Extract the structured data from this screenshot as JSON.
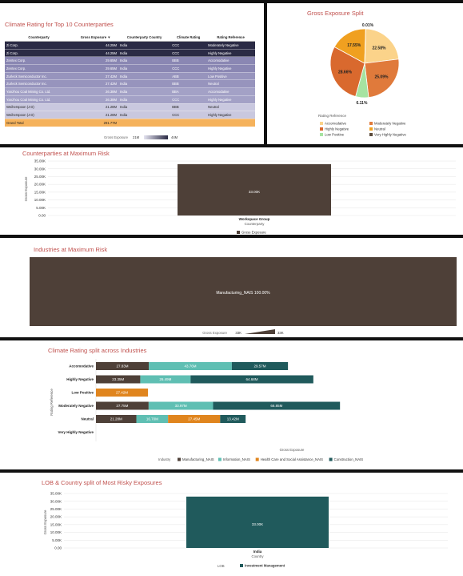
{
  "table_panel": {
    "title": "Climate Rating for Top 10 Counterparties",
    "columns": [
      "Counterparty",
      "Gross Exposure ▼",
      "Counterparty Country",
      "Climate Rating",
      "Rating Reference"
    ],
    "rows": [
      {
        "name": "Zi Corp.",
        "value": "44.25M",
        "country": "India",
        "rating": "CCC",
        "ref": "Moderately Negative",
        "color": "#2b2b45"
      },
      {
        "name": "Zi Corp.",
        "value": "44.25M",
        "country": "India",
        "rating": "CCC",
        "ref": "Highly Negative",
        "color": "#2b2b45"
      },
      {
        "name": "Zentex Corp.",
        "value": "29.65M",
        "country": "India",
        "rating": "BBB",
        "ref": "Accomodative",
        "color": "#8a87b3"
      },
      {
        "name": "Zentex Corp.",
        "value": "29.65M",
        "country": "India",
        "rating": "CCC",
        "ref": "Highly Negative",
        "color": "#8a87b3"
      },
      {
        "name": "Zurleck Semiconductor Inc.",
        "value": "27.42M",
        "country": "India",
        "rating": "ABB",
        "ref": "Low Positive",
        "color": "#9794bd"
      },
      {
        "name": "Zurleck Semiconductor Inc.",
        "value": "27.42M",
        "country": "India",
        "rating": "BBB",
        "ref": "Neutral",
        "color": "#9794bd"
      },
      {
        "name": "Yanzhou Coal Mining Co. Ltd.",
        "value": "26.38M",
        "country": "India",
        "rating": "BBA",
        "ref": "Accomodative",
        "color": "#a3a1c6"
      },
      {
        "name": "Yanzhou Coal Mining Co. Ltd.",
        "value": "26.38M",
        "country": "India",
        "rating": "CCC",
        "ref": "Highly Negative",
        "color": "#a3a1c6"
      },
      {
        "name": "Weiherspoon (J D)",
        "value": "21.28M",
        "country": "India",
        "rating": "BBB",
        "ref": "Neutral",
        "color": "#c9c8df"
      },
      {
        "name": "Weiherspoon (J D)",
        "value": "21.28M",
        "country": "India",
        "rating": "CCC",
        "ref": "Highly Negative",
        "color": "#c9c8df"
      }
    ],
    "total": {
      "name": "Grand Total",
      "value": "291.77M",
      "color": "#f5b25c"
    },
    "legend_label": "Gross Exposure",
    "legend_min": "21M",
    "legend_max": "44M"
  },
  "pie_panel": {
    "title": "Gross Exposure Split",
    "legend_title": "Rating Reference"
  },
  "cp_panel": {
    "title": "Counterparties at Maximum Risk"
  },
  "ind_panel": {
    "title": "Industries at Maximum Risk",
    "legend_label": "Gross Exposure",
    "legend_min": "33K",
    "legend_max": "33K"
  },
  "split_panel": {
    "title": "Climate Rating split across Industries",
    "legend_title": "Industry"
  },
  "lob_panel": {
    "title": "LOB & Country split of Most Risky Exposures",
    "legend_title": "LOB"
  },
  "chart_data": [
    {
      "type": "pie",
      "title": "Gross Exposure Split",
      "legend_title": "Rating Reference",
      "slices": [
        {
          "name": "Accomodative",
          "value": 22.58,
          "label": "22.58%",
          "color": "#fbd38a"
        },
        {
          "name": "Moderately Negative",
          "value": 25.09,
          "label": "25.09%",
          "color": "#e07a3b"
        },
        {
          "name": "Low Positive",
          "value": 6.11,
          "label": "6.11%",
          "color": "#a6e3a1"
        },
        {
          "name": "Highly Negative",
          "value": 28.66,
          "label": "28.66%",
          "color": "#d9692e"
        },
        {
          "name": "Neutral",
          "value": 17.55,
          "label": "17.55%",
          "color": "#f0a020"
        },
        {
          "name": "Very Highly Negative",
          "value": 0.01,
          "label": "0.01%",
          "color": "#5a4a3a"
        }
      ],
      "legend_order": [
        "Accomodative",
        "Moderately Negative",
        "Highly Negative",
        "Neutral",
        "Low Positive",
        "Very Highly Negative"
      ]
    },
    {
      "type": "bar",
      "title": "Counterparties at Maximum Risk",
      "categories": [
        "Workspace Group"
      ],
      "values": [
        33000
      ],
      "data_labels": [
        "33.00K"
      ],
      "yticks": [
        "0.00",
        "5.00K",
        "10.00K",
        "15.00K",
        "20.00K",
        "25.00K",
        "30.00K",
        "35.00K"
      ],
      "ylim": [
        0,
        35000
      ],
      "xlabel": "Counterparty",
      "ylabel": "Gross Exposure",
      "series_name": "Gross Exposure",
      "color": "#4e4038"
    },
    {
      "type": "heatmap",
      "title": "Industries at Maximum Risk",
      "cells": [
        {
          "label": "Manufacturing_NAIS 100.00%",
          "value": 33000
        }
      ],
      "color": "#4e4038"
    },
    {
      "type": "bar",
      "orientation": "horizontal-stacked",
      "title": "Climate Rating split across Industries",
      "categories": [
        "Accomodative",
        "Highly Negative",
        "Low Positive",
        "Moderately Negative",
        "Neutral",
        "Very Highly Negative"
      ],
      "ylabel": "Rating Reference",
      "xlabel": "Gross Exposure",
      "xlim": [
        0,
        190
      ],
      "series": [
        {
          "name": "Manufacturing_NAIS",
          "color": "#4e4038",
          "values": [
            27.83,
            23.35,
            0,
            27.75,
            21.28,
            0
          ],
          "labels": [
            "27.83M",
            "23.35M",
            "",
            "27.75M",
            "21.28M",
            ""
          ]
        },
        {
          "name": "Information_NAIS",
          "color": "#5fbfb3",
          "values": [
            43.76,
            26.49,
            0,
            33.97,
            16.7,
            0
          ],
          "labels": [
            "43.76M",
            "26.49M",
            "",
            "33.97M",
            "16.70M",
            ""
          ]
        },
        {
          "name": "Health Care and Social Assistance_NAIS",
          "color": "#e0851e",
          "values": [
            0,
            0,
            27.42,
            0,
            27.45,
            0
          ],
          "labels": [
            "",
            "",
            "27.42M",
            "",
            "27.45M",
            ""
          ]
        },
        {
          "name": "Construction_NAIS",
          "color": "#205a5c",
          "values": [
            29.57,
            64.68,
            0,
            66.85,
            13.42,
            0
          ],
          "labels": [
            "29.57M",
            "64.68M",
            "",
            "66.85M",
            "13.42M",
            ""
          ]
        }
      ]
    },
    {
      "type": "bar",
      "title": "LOB & Country split of Most Risky Exposures",
      "categories": [
        "India"
      ],
      "values": [
        33000
      ],
      "data_labels": [
        "33.00K"
      ],
      "yticks": [
        "0.00",
        "5.00K",
        "10.00K",
        "15.00K",
        "20.00K",
        "25.00K",
        "30.00K",
        "35.00K"
      ],
      "ylim": [
        0,
        35000
      ],
      "xlabel": "Country",
      "ylabel": "Gross Exposure",
      "series_name": "Investment Management",
      "color": "#205a5c"
    }
  ]
}
